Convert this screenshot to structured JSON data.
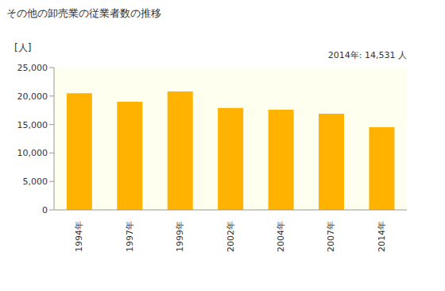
{
  "chart_data": {
    "type": "bar",
    "title": "その他の卸売業の従業者数の推移",
    "y_label": "[人]",
    "annotation": "2014年: 14,531 人",
    "categories": [
      "1994年",
      "1997年",
      "1999年",
      "2002年",
      "2004年",
      "2007年",
      "2014年"
    ],
    "values": [
      20500,
      19000,
      20800,
      17900,
      17600,
      16900,
      14531
    ],
    "color": "#ffb300",
    "ylim": [
      0,
      25000
    ],
    "yticks": [
      {
        "value": 0,
        "label": "0"
      },
      {
        "value": 5000,
        "label": "5,000"
      },
      {
        "value": 10000,
        "label": "10,000"
      },
      {
        "value": 15000,
        "label": "15,000"
      },
      {
        "value": 20000,
        "label": "20,000"
      },
      {
        "value": 25000,
        "label": "25,000"
      }
    ],
    "grid": false
  }
}
